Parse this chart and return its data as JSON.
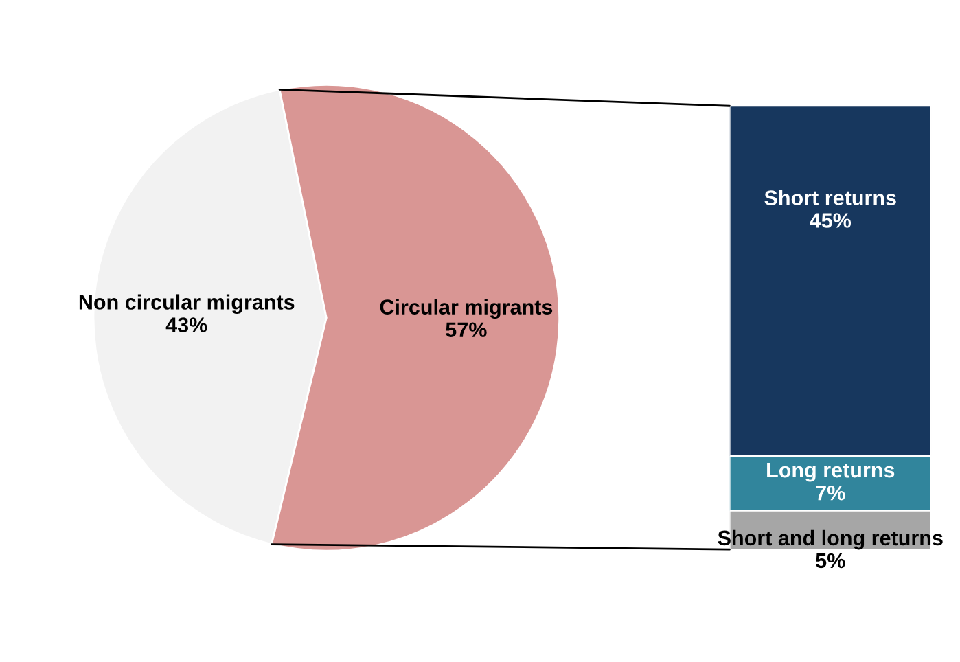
{
  "chart_data": [
    {
      "type": "pie",
      "categories": [
        "Non circular migrants",
        "Circular migrants"
      ],
      "values": [
        43,
        57
      ],
      "colors": [
        "#f2f2f2",
        "#d99694"
      ],
      "value_labels": [
        "43%",
        "57%"
      ]
    },
    {
      "type": "bar",
      "stacked": true,
      "categories": [
        null
      ],
      "series": [
        {
          "name": "Short and long returns",
          "color": "#a6a6a6",
          "values": [
            5
          ],
          "value_labels": [
            "5%"
          ]
        },
        {
          "name": "Long returns",
          "color": "#31859c",
          "values": [
            7
          ],
          "value_labels": [
            "7%"
          ]
        },
        {
          "name": "Short returns",
          "color": "#17375e",
          "values": [
            45
          ],
          "value_labels": [
            "45%"
          ]
        }
      ]
    }
  ]
}
